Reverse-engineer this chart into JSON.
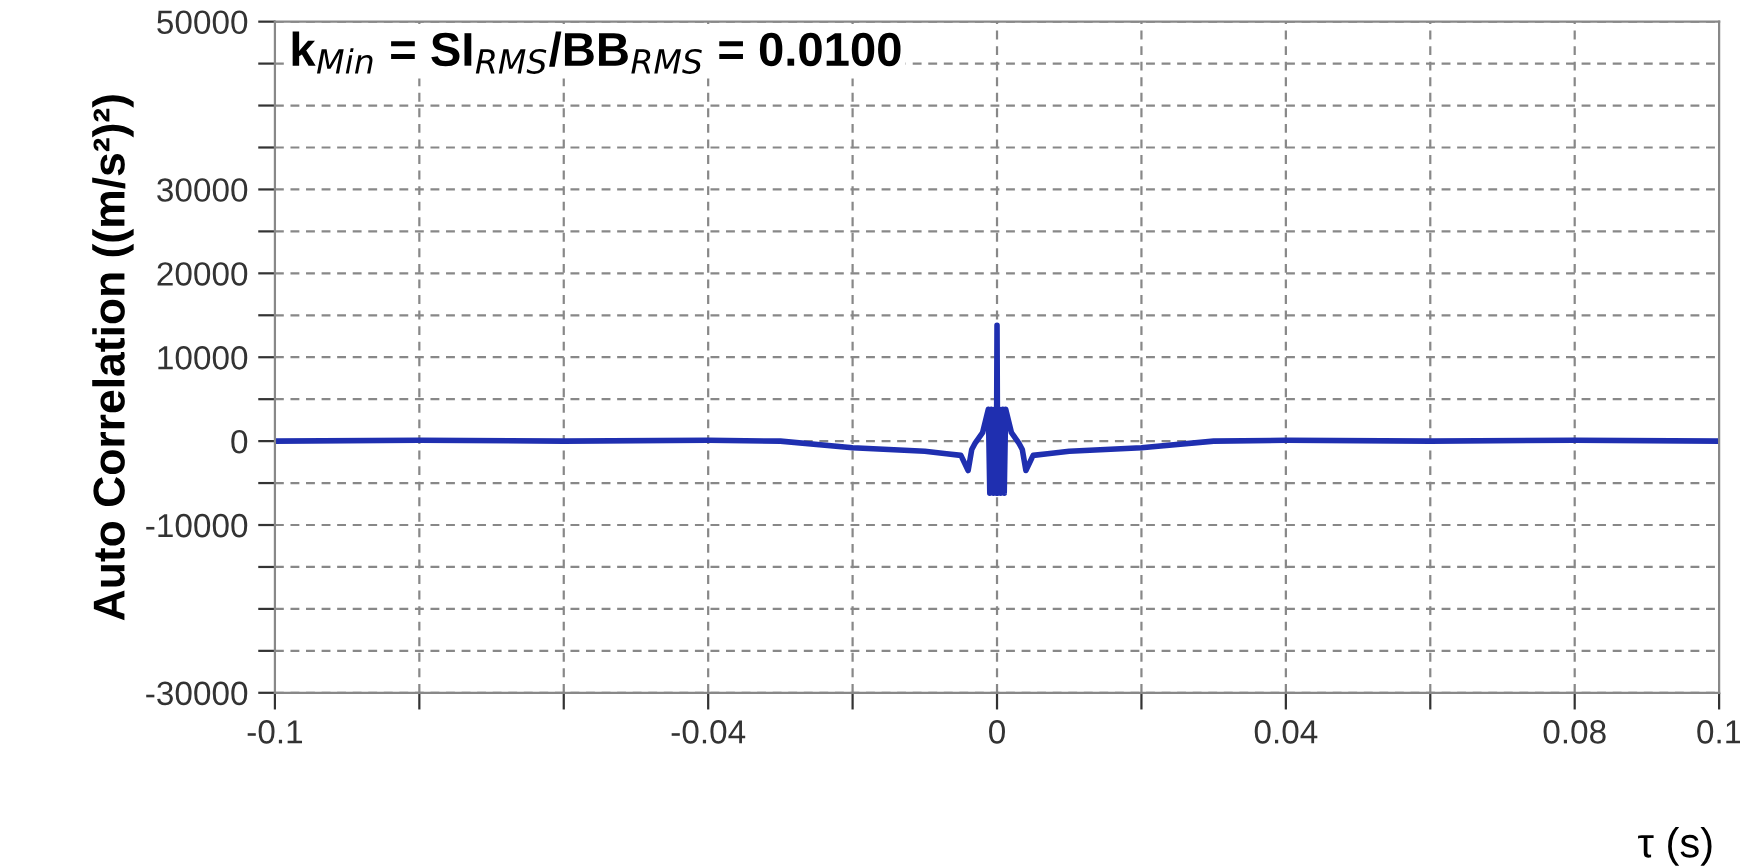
{
  "chart_data": {
    "type": "line",
    "annotations": [
      "k$_{Min}$ = SI$_{RMS}$/BB$_{RMS}$ = 0.0100"
    ],
    "xlabel": "τ (s)",
    "ylabel": "Auto Correlation ((m/s²)²)",
    "x": [
      -0.1,
      -0.08,
      -0.06,
      -0.04,
      -0.03,
      -0.02,
      -0.015,
      -0.01,
      -0.007,
      -0.005,
      -0.004,
      -0.0035,
      -0.003,
      -0.002,
      -0.0012,
      -0.001,
      -0.0008,
      -0.0005,
      -0.0003,
      -0.0001,
      0,
      0.0001,
      0.0003,
      0.0005,
      0.0008,
      0.001,
      0.0012,
      0.002,
      0.003,
      0.0035,
      0.004,
      0.005,
      0.007,
      0.01,
      0.015,
      0.02,
      0.03,
      0.04,
      0.06,
      0.08,
      0.1
    ],
    "series": [
      {
        "color": "#1f2fb0",
        "values": [
          0,
          100,
          0,
          100,
          0,
          -800,
          -1000,
          -1200,
          -1500,
          -1700,
          -3500,
          -1000,
          -200,
          1000,
          3800,
          -6200,
          3800,
          -6200,
          3800,
          -6200,
          13800,
          -6200,
          3800,
          -6200,
          3800,
          -6200,
          3800,
          1000,
          -200,
          -1000,
          -3500,
          -1700,
          -1500,
          -1200,
          -1000,
          -800,
          0,
          100,
          0,
          100,
          0
        ]
      }
    ],
    "xlim": [
      -0.1,
      0.1
    ],
    "xticks": [
      -0.1,
      {
        "value": -0.08,
        "label": null
      },
      {
        "value": -0.06,
        "label": null
      },
      -0.04,
      {
        "value": -0.02,
        "label": null
      },
      0,
      {
        "value": 0.02,
        "label": null
      },
      0.04,
      {
        "value": 0.06,
        "label": null
      },
      0.08,
      0.1
    ],
    "ylim": [
      -30000,
      50000
    ],
    "yticks": [
      -30000,
      {
        "value": -25000,
        "label": null
      },
      {
        "value": -20000,
        "label": null
      },
      {
        "value": -15000,
        "label": null
      },
      -10000,
      {
        "value": -5000,
        "label": null
      },
      0,
      {
        "value": 5000,
        "label": null
      },
      10000,
      {
        "value": 15000,
        "label": null
      },
      20000,
      {
        "value": 25000,
        "label": null
      },
      30000,
      {
        "value": 35000,
        "label": null
      },
      {
        "value": 40000,
        "label": null
      },
      {
        "value": 45000,
        "label": null
      },
      50000
    ],
    "grid": true,
    "marker": "none",
    "line_style": "solid"
  }
}
